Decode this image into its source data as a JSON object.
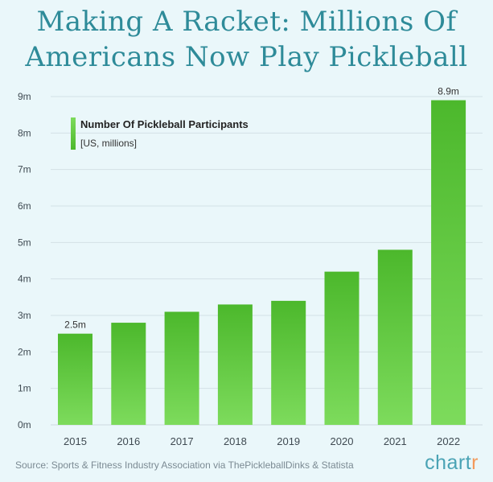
{
  "title": {
    "line1": "Making A Racket: Millions Of",
    "line2": "Americans Now Play Pickleball"
  },
  "chart_data": {
    "type": "bar",
    "title": "Making A Racket: Millions Of Americans Now Play Pickleball",
    "categories": [
      "2015",
      "2016",
      "2017",
      "2018",
      "2019",
      "2020",
      "2021",
      "2022"
    ],
    "series": [
      {
        "name": "Number Of Pickleball Participants",
        "values": [
          2.5,
          2.8,
          3.1,
          3.3,
          3.4,
          4.2,
          4.8,
          8.9
        ],
        "color": "#5cc23a"
      }
    ],
    "legend": {
      "label": "Number Of Pickleball Participants",
      "sublabel": "[US, millions]",
      "position": "top-left"
    },
    "data_labels": [
      {
        "category": "2015",
        "text": "2.5m"
      },
      {
        "category": "2022",
        "text": "8.9m"
      }
    ],
    "ylim": [
      0,
      9
    ],
    "yticks": [
      0,
      1,
      2,
      3,
      4,
      5,
      6,
      7,
      8,
      9
    ],
    "ytick_labels": [
      "0m",
      "1m",
      "2m",
      "3m",
      "4m",
      "5m",
      "6m",
      "7m",
      "8m",
      "9m"
    ],
    "grid": true,
    "xlabel": "",
    "ylabel": ""
  },
  "source": "Source: Sports & Fitness Industry Association via ThePickleballDinks & Statista",
  "logo": {
    "main": "chart",
    "accent": "r"
  },
  "colors": {
    "background": "#eaf7fa",
    "title": "#2e8b99",
    "bar_top": "#4cb82c",
    "bar_bottom": "#7ddb5c",
    "grid": "#d3e0e5",
    "axis_text": "#3f4a52",
    "logo": "#4aa3b5",
    "logo_accent": "#f39a5c"
  }
}
